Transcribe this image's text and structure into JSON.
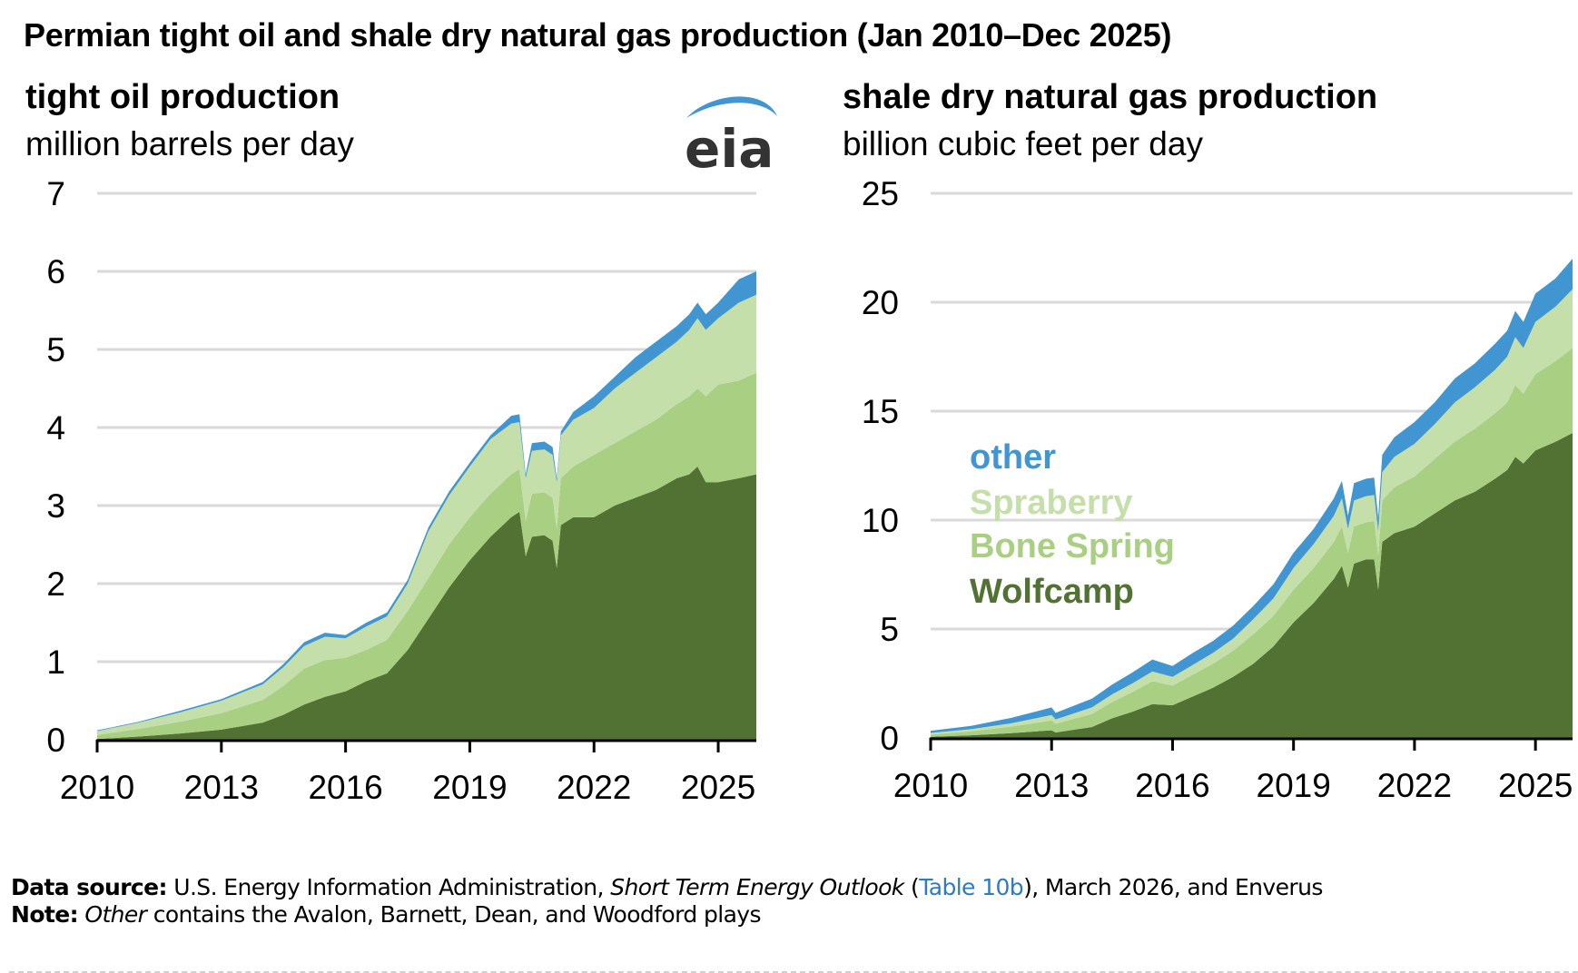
{
  "title": "Permian tight oil and shale dry natural gas production (Jan 2010–Dec 2025)",
  "logo": {
    "text": "eia",
    "icon": "eia-logo-arc-icon",
    "arc_color": "#4196d2"
  },
  "colors": {
    "other": "#4196d2",
    "spraberry": "#c4dfa9",
    "bone_spring": "#a8cf82",
    "wolfcamp": "#517233",
    "grid": "#d9d9d9",
    "axis": "#000000"
  },
  "chart_data": [
    {
      "type": "area",
      "stacked": true,
      "title": "tight oil production",
      "ylabel": "million barrels per day",
      "xlabel": "",
      "xlim": [
        2010.0,
        2026.0
      ],
      "ylim": [
        0,
        7
      ],
      "yticks": [
        0,
        1,
        2,
        3,
        4,
        5,
        6,
        7
      ],
      "xticks": [
        2010,
        2013,
        2016,
        2019,
        2022,
        2025
      ],
      "xtick_labels": [
        "2010",
        "2013",
        "2016",
        "2019",
        "2022",
        "2025"
      ],
      "ytick_labels": [
        "0",
        "1",
        "2",
        "3",
        "4",
        "5",
        "6",
        "7"
      ],
      "grid": true,
      "legend": null,
      "x": [
        2010.0,
        2011.0,
        2012.0,
        2013.0,
        2014.0,
        2014.5,
        2015.0,
        2015.5,
        2016.0,
        2016.5,
        2017.0,
        2017.5,
        2018.0,
        2018.5,
        2019.0,
        2019.5,
        2020.0,
        2020.2,
        2020.35,
        2020.5,
        2020.8,
        2021.0,
        2021.1,
        2021.2,
        2021.5,
        2022.0,
        2022.5,
        2023.0,
        2023.5,
        2024.0,
        2024.3,
        2024.5,
        2024.7,
        2025.0,
        2025.5,
        2025.92
      ],
      "series": [
        {
          "name": "Wolfcamp",
          "values": [
            0.01,
            0.04,
            0.08,
            0.13,
            0.22,
            0.32,
            0.45,
            0.55,
            0.62,
            0.75,
            0.85,
            1.15,
            1.55,
            1.95,
            2.3,
            2.6,
            2.85,
            2.92,
            2.35,
            2.6,
            2.62,
            2.55,
            2.2,
            2.75,
            2.85,
            2.85,
            3.0,
            3.1,
            3.2,
            3.35,
            3.4,
            3.5,
            3.3,
            3.3,
            3.35,
            3.4
          ]
        },
        {
          "name": "Bone Spring",
          "values": [
            0.05,
            0.1,
            0.15,
            0.21,
            0.29,
            0.37,
            0.46,
            0.47,
            0.43,
            0.4,
            0.43,
            0.5,
            0.52,
            0.55,
            0.55,
            0.55,
            0.55,
            0.55,
            0.45,
            0.55,
            0.55,
            0.55,
            0.5,
            0.6,
            0.65,
            0.8,
            0.8,
            0.85,
            0.9,
            0.95,
            1.0,
            1.0,
            1.1,
            1.25,
            1.25,
            1.3
          ]
        },
        {
          "name": "Spraberry",
          "values": [
            0.05,
            0.08,
            0.12,
            0.16,
            0.2,
            0.24,
            0.29,
            0.3,
            0.25,
            0.3,
            0.3,
            0.35,
            0.6,
            0.63,
            0.65,
            0.7,
            0.65,
            0.6,
            0.55,
            0.55,
            0.55,
            0.55,
            0.6,
            0.55,
            0.6,
            0.6,
            0.7,
            0.75,
            0.8,
            0.8,
            0.85,
            0.9,
            0.85,
            0.85,
            1.0,
            1.0
          ]
        },
        {
          "name": "other",
          "values": [
            0.01,
            0.01,
            0.02,
            0.02,
            0.03,
            0.04,
            0.05,
            0.05,
            0.04,
            0.05,
            0.05,
            0.05,
            0.05,
            0.05,
            0.05,
            0.05,
            0.1,
            0.1,
            0.05,
            0.1,
            0.1,
            0.1,
            0.05,
            0.05,
            0.1,
            0.15,
            0.15,
            0.2,
            0.2,
            0.2,
            0.2,
            0.2,
            0.2,
            0.2,
            0.3,
            0.3
          ]
        }
      ]
    },
    {
      "type": "area",
      "stacked": true,
      "title": "shale dry natural gas production",
      "ylabel": "billion cubic feet per day",
      "xlabel": "",
      "xlim": [
        2010.0,
        2026.0
      ],
      "ylim": [
        0,
        25
      ],
      "yticks": [
        0,
        5,
        10,
        15,
        20,
        25
      ],
      "xticks": [
        2010,
        2013,
        2016,
        2019,
        2022,
        2025
      ],
      "xtick_labels": [
        "2010",
        "2013",
        "2016",
        "2019",
        "2022",
        "2025"
      ],
      "ytick_labels": [
        "0",
        "5",
        "10",
        "15",
        "20",
        "25"
      ],
      "grid": true,
      "legend": {
        "placement": "center-left",
        "entries": [
          "other",
          "Spraberry",
          "Bone Spring",
          "Wolfcamp"
        ]
      },
      "x": [
        2010.0,
        2011.0,
        2012.0,
        2013.0,
        2013.1,
        2014.0,
        2014.5,
        2015.0,
        2015.5,
        2016.0,
        2016.5,
        2017.0,
        2017.5,
        2018.0,
        2018.5,
        2019.0,
        2019.5,
        2020.0,
        2020.2,
        2020.35,
        2020.5,
        2020.8,
        2021.0,
        2021.1,
        2021.2,
        2021.5,
        2022.0,
        2022.5,
        2023.0,
        2023.5,
        2024.0,
        2024.3,
        2024.5,
        2024.7,
        2025.0,
        2025.5,
        2025.92
      ],
      "series": [
        {
          "name": "Wolfcamp",
          "values": [
            0.05,
            0.12,
            0.22,
            0.35,
            0.25,
            0.5,
            0.9,
            1.2,
            1.55,
            1.5,
            1.9,
            2.3,
            2.8,
            3.4,
            4.2,
            5.3,
            6.2,
            7.3,
            7.9,
            6.9,
            8.0,
            8.2,
            8.2,
            6.8,
            9.0,
            9.4,
            9.7,
            10.3,
            10.9,
            11.3,
            11.9,
            12.3,
            12.9,
            12.6,
            13.2,
            13.6,
            14.0
          ]
        },
        {
          "name": "Bone Spring",
          "values": [
            0.1,
            0.18,
            0.3,
            0.45,
            0.4,
            0.6,
            0.75,
            0.9,
            1.05,
            0.9,
            1.0,
            1.1,
            1.2,
            1.35,
            1.4,
            1.5,
            1.6,
            1.7,
            1.8,
            1.6,
            1.7,
            1.7,
            1.75,
            1.6,
            1.9,
            2.1,
            2.3,
            2.5,
            2.7,
            2.9,
            3.0,
            3.1,
            3.3,
            3.2,
            3.5,
            3.7,
            3.9
          ]
        },
        {
          "name": "Spraberry",
          "values": [
            0.08,
            0.1,
            0.15,
            0.25,
            0.2,
            0.3,
            0.35,
            0.4,
            0.45,
            0.4,
            0.45,
            0.5,
            0.55,
            0.7,
            0.8,
            1.0,
            1.1,
            1.2,
            1.3,
            1.1,
            1.2,
            1.2,
            1.2,
            1.1,
            1.3,
            1.4,
            1.5,
            1.6,
            1.8,
            1.9,
            2.0,
            2.1,
            2.2,
            2.1,
            2.4,
            2.5,
            2.7
          ]
        },
        {
          "name": "other",
          "values": [
            0.1,
            0.15,
            0.25,
            0.35,
            0.3,
            0.4,
            0.45,
            0.5,
            0.55,
            0.5,
            0.55,
            0.55,
            0.6,
            0.6,
            0.65,
            0.7,
            0.7,
            0.8,
            0.8,
            0.6,
            0.8,
            0.8,
            0.8,
            0.6,
            0.8,
            0.9,
            1.0,
            1.0,
            1.1,
            1.1,
            1.2,
            1.2,
            1.2,
            1.2,
            1.3,
            1.3,
            1.4
          ]
        }
      ]
    }
  ],
  "legend": {
    "other": "other",
    "spraberry": "Spraberry",
    "bone_spring": "Bone Spring",
    "wolfcamp": "Wolfcamp"
  },
  "footer": {
    "source_label": "Data source:",
    "source_text_1": " U.S. Energy Information Administration, ",
    "source_italic": "Short Term Energy Outlook",
    "source_text_2": " (",
    "source_link": "Table 10b",
    "source_text_3": "), March 2026, and Enverus",
    "note_label": "Note:",
    "note_italic": " Other",
    "note_text": " contains the Avalon, Barnett, Dean, and Woodford plays"
  }
}
